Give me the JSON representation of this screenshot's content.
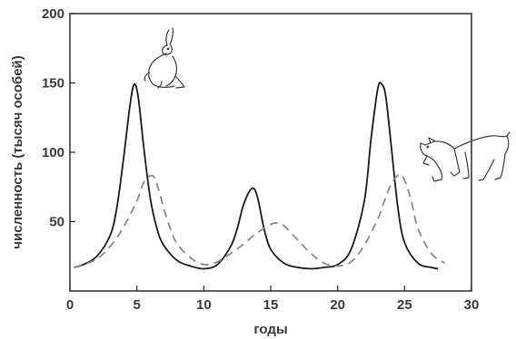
{
  "chart_data": {
    "type": "line",
    "xlabel": "годы",
    "ylabel": "численность (тысяч особей)",
    "xlim": [
      0,
      30
    ],
    "ylim": [
      0,
      200
    ],
    "x_ticks": [
      0,
      5,
      10,
      15,
      20,
      25,
      30
    ],
    "y_ticks": [
      50,
      100,
      150,
      200
    ],
    "grid": false,
    "series": [
      {
        "style": "solid",
        "color": "#1a1a1a",
        "x": [
          0.3,
          1,
          2,
          3,
          3.5,
          4,
          4.5,
          4.8,
          5.1,
          5.5,
          6,
          6.5,
          7,
          8,
          9,
          10,
          11,
          12,
          12.5,
          13,
          13.6,
          14,
          14.5,
          15,
          16,
          17,
          18,
          19,
          20,
          21,
          22,
          22.5,
          23,
          23.3,
          23.6,
          24,
          24.5,
          25,
          26,
          27,
          27.5
        ],
        "y": [
          17,
          19,
          25,
          40,
          60,
          95,
          135,
          149,
          140,
          105,
          67,
          45,
          33,
          22,
          18,
          16,
          19,
          32,
          45,
          63,
          74,
          68,
          45,
          30,
          20,
          17,
          16,
          17,
          19,
          30,
          65,
          110,
          146,
          149,
          140,
          105,
          60,
          35,
          20,
          17,
          16
        ]
      },
      {
        "style": "dashed",
        "color": "#8a8a8a",
        "x": [
          0.3,
          1,
          2,
          3,
          4,
          5,
          5.5,
          6,
          6.4,
          7,
          7.5,
          8,
          9,
          10,
          11,
          12,
          13,
          14,
          15,
          15.5,
          16,
          17,
          18,
          19,
          20,
          21,
          22,
          23,
          23.5,
          24,
          24.6,
          25,
          25.5,
          26,
          27,
          28
        ],
        "y": [
          17,
          19,
          23,
          32,
          46,
          65,
          78,
          83,
          80,
          60,
          45,
          34,
          24,
          19,
          21,
          27,
          34,
          42,
          48,
          49,
          47,
          37,
          27,
          20,
          18,
          21,
          33,
          52,
          65,
          77,
          84,
          80,
          65,
          45,
          27,
          20
        ]
      }
    ],
    "annotations": [
      "hare-illustration",
      "lynx-illustration"
    ]
  }
}
